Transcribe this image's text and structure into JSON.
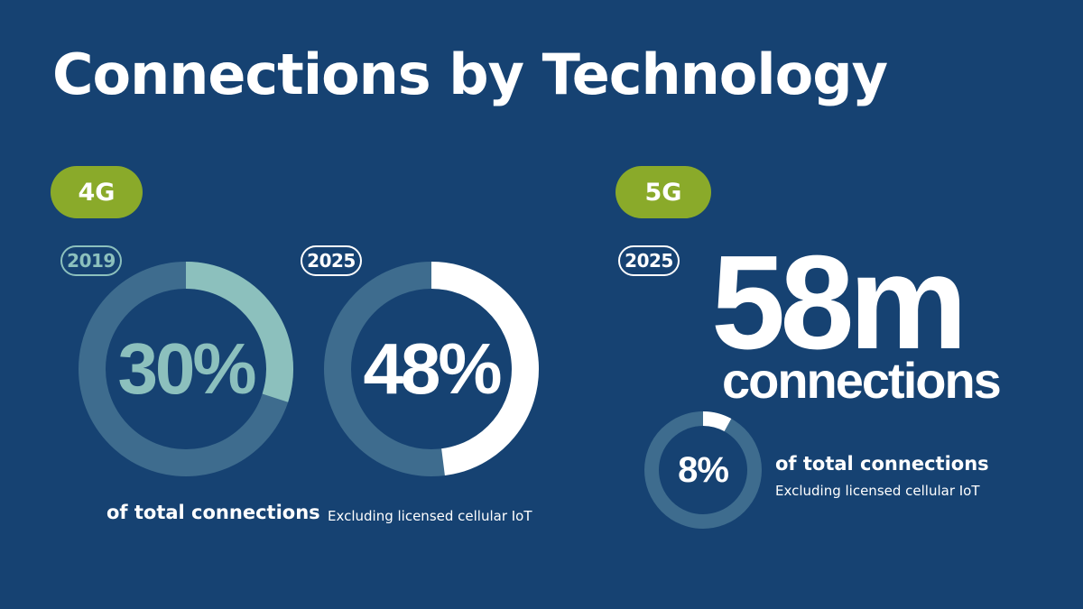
{
  "title": "Connections by Technology",
  "colors": {
    "background": "#164272",
    "pill": "#8aaa2a",
    "track": "#3e6c8e",
    "muted_teal": "#8cc0bd",
    "white": "#ffffff"
  },
  "sections": {
    "fourg": {
      "tag": "4G",
      "label": "of total connections",
      "note": "Excluding licensed cellular IoT"
    },
    "fiveg": {
      "tag": "5G",
      "year": "2025",
      "headline_value": "58m",
      "headline_unit": "connections",
      "label": "of total connections",
      "note": "Excluding licensed cellular IoT"
    }
  },
  "chart_data": [
    {
      "type": "pie",
      "technology": "4G",
      "year": "2019",
      "value": 30,
      "value_label": "30%",
      "unit": "% of total connections"
    },
    {
      "type": "pie",
      "technology": "4G",
      "year": "2025",
      "value": 48,
      "value_label": "48%",
      "unit": "% of total connections"
    },
    {
      "type": "pie",
      "technology": "5G",
      "year": "2025",
      "value": 8,
      "value_label": "8%",
      "unit": "% of total connections"
    }
  ]
}
